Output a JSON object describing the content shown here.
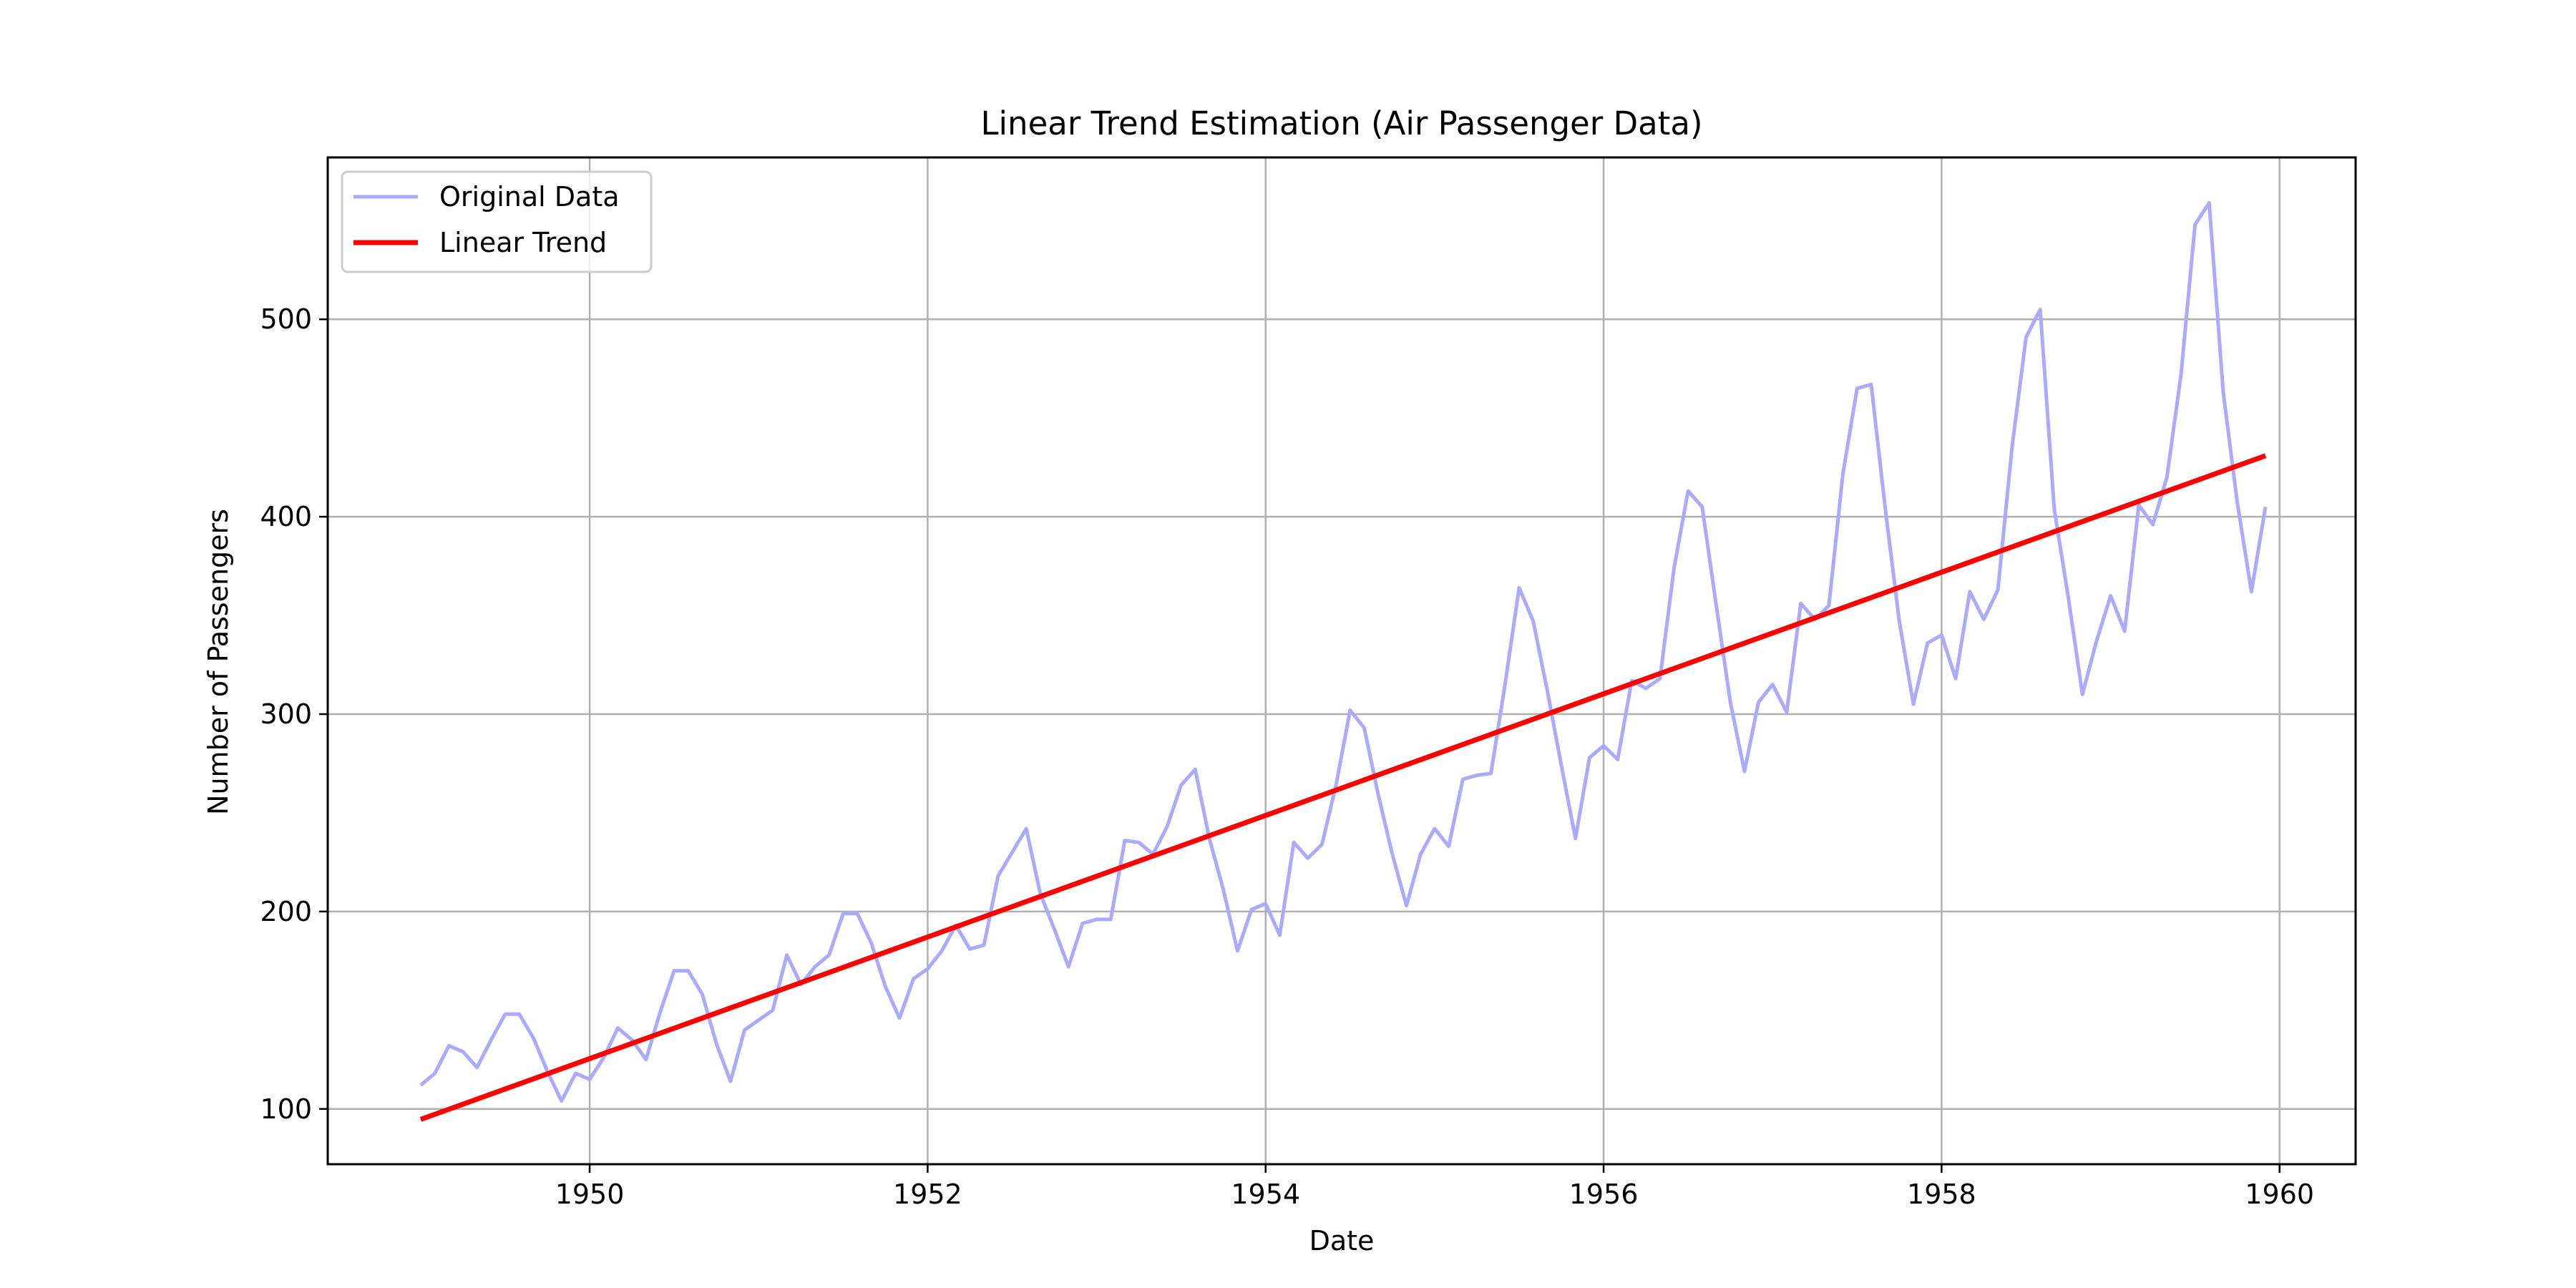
{
  "chart_data": {
    "type": "line",
    "title": "Linear Trend Estimation (Air Passenger Data)",
    "xlabel": "Date",
    "ylabel": "Number of Passengers",
    "x_start": "1949-01",
    "x_freq": "monthly",
    "xlim": [
      1948.45,
      1960.45
    ],
    "ylim": [
      72,
      582
    ],
    "xticks": [
      "1950",
      "1952",
      "1954",
      "1956",
      "1958",
      "1960"
    ],
    "yticks": [
      "100",
      "200",
      "300",
      "400",
      "500"
    ],
    "grid": true,
    "legend_position": "top-left",
    "series": [
      {
        "name": "Original Data",
        "color": "#aaaaff",
        "style": "line",
        "values": [
          112,
          118,
          132,
          129,
          121,
          135,
          148,
          148,
          136,
          119,
          104,
          118,
          115,
          126,
          141,
          135,
          125,
          149,
          170,
          170,
          158,
          133,
          114,
          140,
          145,
          150,
          178,
          163,
          172,
          178,
          199,
          199,
          184,
          162,
          146,
          166,
          171,
          180,
          193,
          181,
          183,
          218,
          230,
          242,
          209,
          191,
          172,
          194,
          196,
          196,
          236,
          235,
          229,
          243,
          264,
          272,
          237,
          211,
          180,
          201,
          204,
          188,
          235,
          227,
          234,
          264,
          302,
          293,
          259,
          229,
          203,
          229,
          242,
          233,
          267,
          269,
          270,
          315,
          364,
          347,
          312,
          274,
          237,
          278,
          284,
          277,
          317,
          313,
          318,
          374,
          413,
          405,
          355,
          306,
          271,
          306,
          315,
          301,
          356,
          348,
          355,
          422,
          465,
          467,
          404,
          347,
          305,
          336,
          340,
          318,
          362,
          348,
          363,
          435,
          491,
          505,
          404,
          359,
          310,
          337,
          360,
          342,
          406,
          396,
          420,
          472,
          548,
          559,
          463,
          407,
          362,
          405
        ]
      },
      {
        "name": "Linear Trend",
        "color": "#ff0000",
        "style": "line",
        "values": [
          94.7,
          430.9
        ]
      }
    ]
  }
}
